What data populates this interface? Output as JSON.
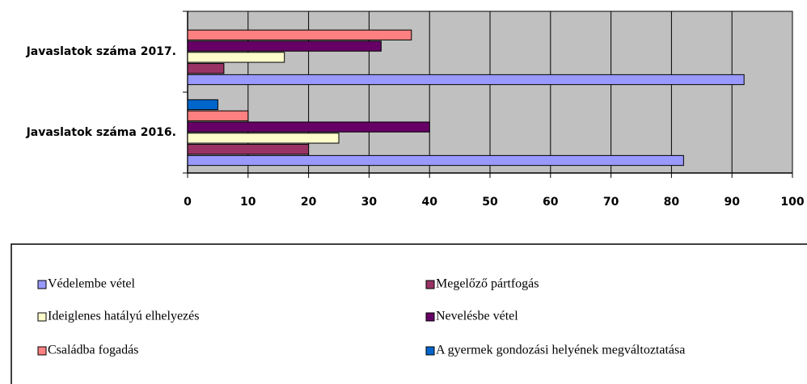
{
  "chart_data": {
    "type": "bar",
    "orientation": "horizontal",
    "categories": [
      "Javaslatok száma 2016.",
      "Javaslatok száma 2017."
    ],
    "series": [
      {
        "name": "Védelembe vétel",
        "color": "#9999ff",
        "values": [
          82,
          92
        ]
      },
      {
        "name": "Megelőző pártfogás",
        "color": "#993366",
        "values": [
          20,
          6
        ]
      },
      {
        "name": "Ideiglenes hatályú elhelyezés",
        "color": "#ffffcc",
        "values": [
          25,
          16
        ]
      },
      {
        "name": "Nevelésbe vétel",
        "color": "#660066",
        "values": [
          40,
          32
        ]
      },
      {
        "name": "Családba fogadás",
        "color": "#ff8080",
        "values": [
          10,
          37
        ]
      },
      {
        "name": "A gyermek gondozási helyének megváltoztatása",
        "color": "#0066cc",
        "values": [
          5,
          0
        ]
      }
    ],
    "xlim": [
      0,
      100
    ],
    "xticks": [
      0,
      10,
      20,
      30,
      40,
      50,
      60,
      70,
      80,
      90,
      100
    ],
    "grid": true,
    "plot_background": "#c0c0c0",
    "legend": "bottom"
  }
}
